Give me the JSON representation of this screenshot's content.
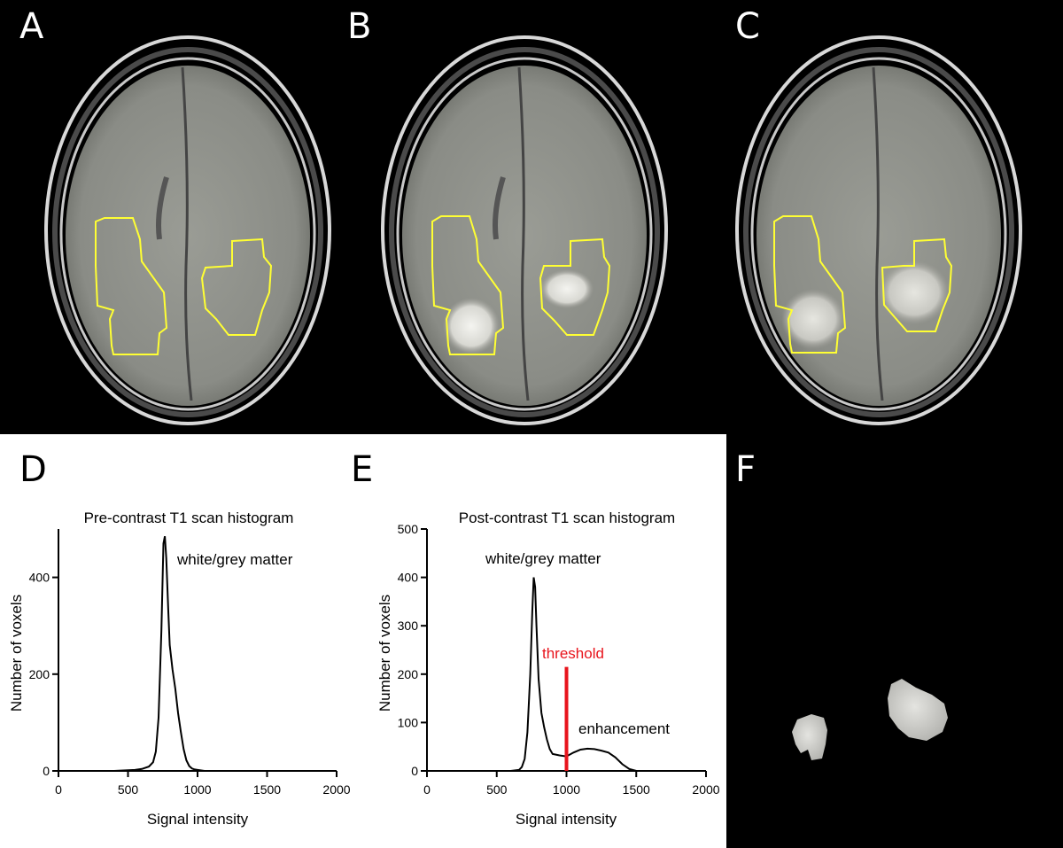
{
  "panels": [
    {
      "label": "A"
    },
    {
      "label": "B"
    },
    {
      "label": "C"
    },
    {
      "label": "D"
    },
    {
      "label": "E"
    },
    {
      "label": "F"
    }
  ],
  "colors": {
    "roi_outline": "#ffff33",
    "threshold": "#e8141c",
    "curve": "#000000",
    "mri_background": "#000000"
  },
  "chart_data": [
    {
      "type": "line",
      "title": "Pre-contrast T1 scan histogram",
      "xlabel": "Signal intensity",
      "ylabel": "Number of voxels",
      "xlim": [
        0,
        2000
      ],
      "ylim": [
        0,
        500
      ],
      "xticks": [
        0,
        500,
        1000,
        1500,
        2000
      ],
      "yticks": [
        0,
        200,
        400
      ],
      "grid": false,
      "annotations": [
        {
          "text": "white/grey matter"
        }
      ],
      "series": [
        {
          "x": [
            400,
            550,
            600,
            650,
            680,
            700,
            720,
            740,
            755,
            765,
            775,
            790,
            800,
            820,
            840,
            860,
            880,
            900,
            920,
            940,
            960,
            980,
            1000,
            1050
          ],
          "y": [
            0,
            2,
            4,
            9,
            18,
            40,
            110,
            290,
            470,
            485,
            440,
            330,
            260,
            210,
            170,
            120,
            80,
            45,
            22,
            10,
            5,
            3,
            2,
            0
          ]
        }
      ]
    },
    {
      "type": "line",
      "title": "Post-contrast T1 scan histogram",
      "xlabel": "Signal intensity",
      "ylabel": "Number of voxels",
      "xlim": [
        0,
        2000
      ],
      "ylim": [
        0,
        500
      ],
      "xticks": [
        0,
        500,
        1000,
        1500,
        2000
      ],
      "yticks": [
        0,
        100,
        200,
        300,
        400,
        500
      ],
      "grid": false,
      "annotations": [
        {
          "text": "white/grey matter"
        },
        {
          "text": "enhancement"
        },
        {
          "text": "threshold",
          "x": 1000
        }
      ],
      "threshold": 1000,
      "series": [
        {
          "x": [
            600,
            660,
            680,
            700,
            720,
            740,
            755,
            765,
            775,
            785,
            800,
            820,
            840,
            860,
            880,
            900,
            950,
            1000,
            1050,
            1100,
            1150,
            1200,
            1250,
            1300,
            1350,
            1400,
            1450,
            1500
          ],
          "y": [
            0,
            2,
            8,
            25,
            80,
            200,
            330,
            400,
            380,
            300,
            190,
            120,
            90,
            65,
            45,
            35,
            32,
            30,
            38,
            44,
            46,
            45,
            42,
            38,
            28,
            14,
            4,
            0
          ]
        }
      ]
    }
  ]
}
